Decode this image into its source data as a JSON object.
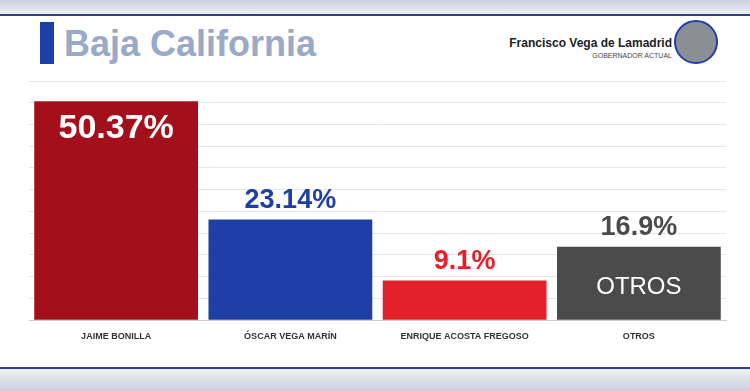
{
  "chart_data": {
    "type": "bar",
    "title": "Baja California",
    "annotations": [
      "Francisco Vega de Lamadrid",
      "GOBERNADOR ACTUAL"
    ],
    "categories": [
      "JAIME BONILLA",
      "ÓSCAR VEGA MARÍN",
      "ENRIQUE ACOSTA FREGOSO",
      "OTROS"
    ],
    "values": [
      50.37,
      23.14,
      9.1,
      16.9
    ],
    "value_labels": [
      "50.37%",
      "23.14%",
      "9.1%",
      "16.9%"
    ],
    "colors": [
      "#a3101c",
      "#1e3fa6",
      "#e2212b",
      "#4b4b4b"
    ],
    "ylim": [
      0,
      55
    ],
    "yticks": [
      0,
      5,
      10,
      15,
      20,
      25,
      30,
      35,
      40,
      45,
      50,
      55
    ],
    "grid": true,
    "data_labels": true,
    "tick_labels": "x"
  }
}
